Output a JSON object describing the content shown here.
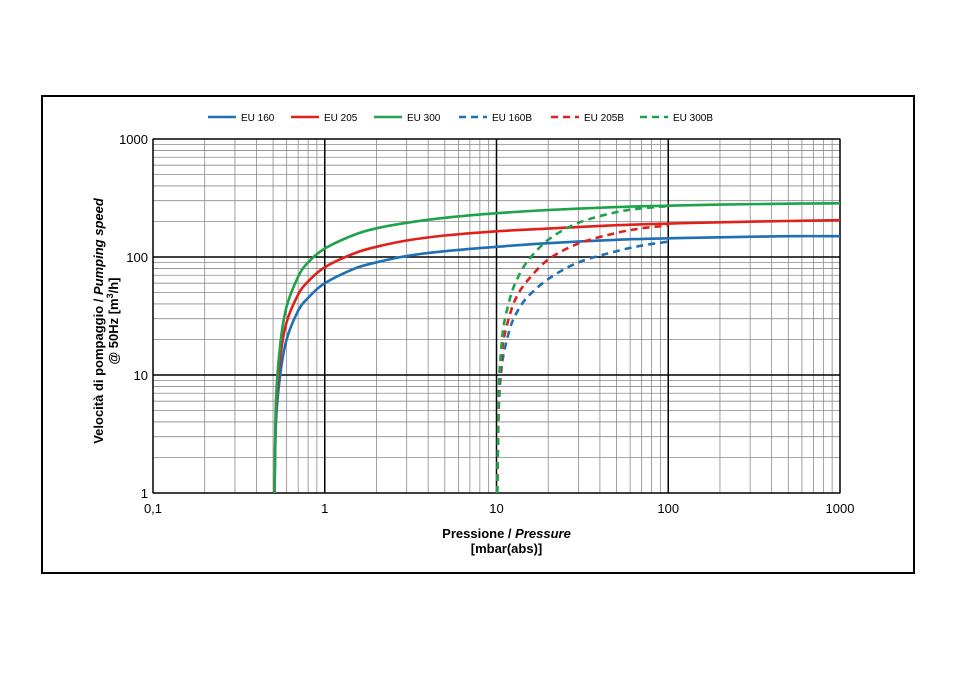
{
  "chart_data": {
    "type": "line",
    "xscale": "log",
    "yscale": "log",
    "xlim": [
      0.1,
      1000
    ],
    "ylim": [
      1,
      1000
    ],
    "grid": true,
    "legend_position": "top",
    "x_ticks": [
      "0,1",
      "1",
      "10",
      "100",
      "1000"
    ],
    "y_ticks": [
      "1",
      "10",
      "100",
      "1000"
    ],
    "xlabel": {
      "main": "Pressione / ",
      "italic": "Pressure",
      "unit": "[mbar(abs)]"
    },
    "ylabel": {
      "line1_main": "Velocità di pompaggio / ",
      "line1_italic": "Pumping speed",
      "line2_pre": "@ 50Hz [m",
      "line2_sup": "3",
      "line2_post": "/h]"
    },
    "series": [
      {
        "name": "EU 160",
        "color": "#1f6fb4",
        "dashed": false,
        "points": [
          [
            0.51,
            1
          ],
          [
            0.52,
            4
          ],
          [
            0.55,
            10
          ],
          [
            0.6,
            20
          ],
          [
            0.7,
            35
          ],
          [
            0.8,
            45
          ],
          [
            1,
            60
          ],
          [
            1.5,
            80
          ],
          [
            2,
            90
          ],
          [
            3,
            102
          ],
          [
            5,
            112
          ],
          [
            10,
            122
          ],
          [
            20,
            131
          ],
          [
            50,
            140
          ],
          [
            100,
            144
          ],
          [
            200,
            147
          ],
          [
            500,
            150
          ],
          [
            1000,
            150
          ]
        ]
      },
      {
        "name": "EU 205",
        "color": "#e0201b",
        "dashed": false,
        "points": [
          [
            0.51,
            1
          ],
          [
            0.52,
            5
          ],
          [
            0.55,
            14
          ],
          [
            0.6,
            28
          ],
          [
            0.7,
            48
          ],
          [
            0.8,
            62
          ],
          [
            1,
            82
          ],
          [
            1.5,
            108
          ],
          [
            2,
            122
          ],
          [
            3,
            138
          ],
          [
            5,
            152
          ],
          [
            10,
            165
          ],
          [
            20,
            174
          ],
          [
            50,
            186
          ],
          [
            100,
            192
          ],
          [
            200,
            197
          ],
          [
            500,
            202
          ],
          [
            1000,
            205
          ]
        ]
      },
      {
        "name": "EU 300",
        "color": "#1ea34a",
        "dashed": false,
        "points": [
          [
            0.51,
            1
          ],
          [
            0.52,
            6
          ],
          [
            0.55,
            18
          ],
          [
            0.6,
            38
          ],
          [
            0.7,
            68
          ],
          [
            0.8,
            90
          ],
          [
            1,
            118
          ],
          [
            1.5,
            155
          ],
          [
            2,
            175
          ],
          [
            3,
            195
          ],
          [
            5,
            215
          ],
          [
            10,
            235
          ],
          [
            20,
            250
          ],
          [
            50,
            265
          ],
          [
            100,
            272
          ],
          [
            200,
            278
          ],
          [
            500,
            283
          ],
          [
            1000,
            285
          ]
        ]
      },
      {
        "name": "EU 160B",
        "color": "#1f6fb4",
        "dashed": true,
        "points": [
          [
            10.1,
            1
          ],
          [
            10.3,
            5
          ],
          [
            10.6,
            10
          ],
          [
            11,
            15
          ],
          [
            12,
            25
          ],
          [
            13,
            33
          ],
          [
            15,
            45
          ],
          [
            20,
            65
          ],
          [
            30,
            90
          ],
          [
            50,
            112
          ],
          [
            70,
            125
          ],
          [
            100,
            135
          ]
        ]
      },
      {
        "name": "EU 205B",
        "color": "#e0201b",
        "dashed": true,
        "points": [
          [
            10.1,
            1
          ],
          [
            10.3,
            6
          ],
          [
            10.6,
            12
          ],
          [
            11,
            20
          ],
          [
            12,
            33
          ],
          [
            13,
            45
          ],
          [
            15,
            62
          ],
          [
            20,
            95
          ],
          [
            30,
            130
          ],
          [
            50,
            160
          ],
          [
            70,
            175
          ],
          [
            100,
            185
          ]
        ]
      },
      {
        "name": "EU 300B",
        "color": "#1ea34a",
        "dashed": true,
        "points": [
          [
            10.1,
            1
          ],
          [
            10.3,
            7
          ],
          [
            10.6,
            15
          ],
          [
            11,
            26
          ],
          [
            12,
            45
          ],
          [
            13,
            62
          ],
          [
            15,
            90
          ],
          [
            20,
            140
          ],
          [
            30,
            195
          ],
          [
            50,
            240
          ],
          [
            70,
            258
          ],
          [
            100,
            270
          ]
        ]
      }
    ]
  }
}
